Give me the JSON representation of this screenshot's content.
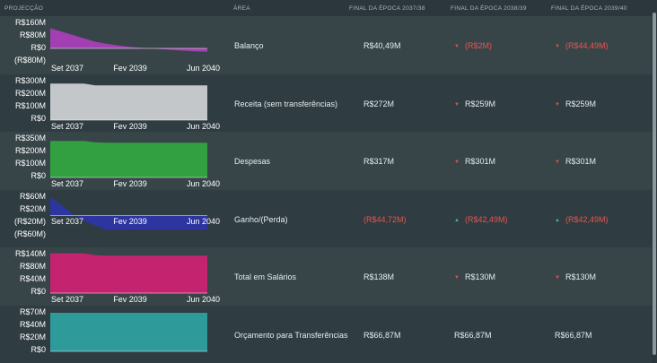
{
  "header": {
    "projection": "PROJECÇÃO",
    "area": "ÁREA",
    "col1": "FINAL DA ÉPOCA 2037/38",
    "col2": "FINAL DA ÉPOCA 2038/39",
    "col3": "FINAL DA ÉPOCA 2039/40"
  },
  "rows": [
    {
      "area": "Balanço",
      "values": [
        "R$40,49M",
        "(R$2M)",
        "(R$44,49M)"
      ],
      "negative": [
        false,
        true,
        true
      ],
      "trend": [
        "none",
        "down",
        "down"
      ]
    },
    {
      "area": "Receita (sem transferências)",
      "values": [
        "R$272M",
        "R$259M",
        "R$259M"
      ],
      "negative": [
        false,
        false,
        false
      ],
      "trend": [
        "none",
        "down",
        "down"
      ]
    },
    {
      "area": "Despesas",
      "values": [
        "R$317M",
        "R$301M",
        "R$301M"
      ],
      "negative": [
        false,
        false,
        false
      ],
      "trend": [
        "none",
        "down",
        "down"
      ]
    },
    {
      "area": "Ganho/(Perda)",
      "values": [
        "(R$44,72M)",
        "(R$42,49M)",
        "(R$42,49M)"
      ],
      "negative": [
        true,
        true,
        true
      ],
      "trend": [
        "none",
        "up",
        "up"
      ]
    },
    {
      "area": "Total em Salários",
      "values": [
        "R$138M",
        "R$130M",
        "R$130M"
      ],
      "negative": [
        false,
        false,
        false
      ],
      "trend": [
        "none",
        "down",
        "down"
      ]
    },
    {
      "area": "Orçamento para Transferências",
      "values": [
        "R$66,87M",
        "R$66,87M",
        "R$66,87M"
      ],
      "negative": [
        false,
        false,
        false
      ],
      "trend": [
        "none",
        "none",
        "none"
      ]
    }
  ],
  "chart_data": [
    {
      "type": "area",
      "title": "Balanço",
      "color": "#a23fb2",
      "x_labels": [
        "Set 2037",
        "Fev 2039",
        "Jun 2040"
      ],
      "y_ticks": [
        "R$160M",
        "R$80M",
        "R$0",
        "(R$80M)"
      ],
      "ylim": [
        -80,
        160
      ],
      "values": [
        120,
        100,
        80,
        60,
        40,
        28,
        18,
        10,
        4,
        0,
        -5,
        -10,
        -14,
        -18,
        -20
      ]
    },
    {
      "type": "area",
      "title": "Receita (sem transferências)",
      "color": "#c3c7c9",
      "x_labels": [
        "Set 2037",
        "Fev 2039",
        "Jun 2040"
      ],
      "y_ticks": [
        "R$300M",
        "R$200M",
        "R$100M",
        "R$0"
      ],
      "ylim": [
        0,
        300
      ],
      "values": [
        272,
        272,
        272,
        272,
        259,
        259,
        259,
        259,
        259,
        259,
        259,
        259,
        259,
        259,
        259
      ]
    },
    {
      "type": "area",
      "title": "Despesas",
      "color": "#32a041",
      "x_labels": [
        "Set 2037",
        "Fev 2039",
        "Jun 2040"
      ],
      "y_ticks": [
        "R$350M",
        "R$200M",
        "R$100M",
        "R$0"
      ],
      "ylim": [
        0,
        350
      ],
      "values": [
        317,
        317,
        317,
        317,
        305,
        301,
        301,
        301,
        301,
        301,
        301,
        301,
        301,
        301,
        301
      ]
    },
    {
      "type": "area",
      "title": "Ganho/(Perda)",
      "color": "#2d35a0",
      "x_labels": [
        "Set 2037",
        "Fev 2039",
        "Jun 2040"
      ],
      "y_ticks": [
        "R$60M",
        "R$20M",
        "(R$20M)",
        "(R$60M)"
      ],
      "ylim": [
        -60,
        60
      ],
      "values": [
        55,
        30,
        5,
        -15,
        -30,
        -42,
        -42,
        -42,
        -42,
        -42,
        -42,
        -42,
        -42,
        -42,
        -42
      ]
    },
    {
      "type": "area",
      "title": "Total em Salários",
      "color": "#c4236f",
      "x_labels": [
        "Set 2037",
        "Fev 2039",
        "Jun 2040"
      ],
      "y_ticks": [
        "R$140M",
        "R$80M",
        "R$40M",
        "R$0"
      ],
      "ylim": [
        0,
        140
      ],
      "values": [
        138,
        138,
        138,
        138,
        132,
        130,
        130,
        130,
        130,
        130,
        130,
        130,
        130,
        130,
        130
      ]
    },
    {
      "type": "area",
      "title": "Orçamento para Transferências",
      "color": "#2e9a9a",
      "x_labels": [],
      "y_ticks": [
        "R$70M",
        "R$40M",
        "R$20M",
        "R$0"
      ],
      "ylim": [
        0,
        70
      ],
      "values": [
        66.87,
        66.87,
        66.87,
        66.87,
        66.87,
        66.87,
        66.87,
        66.87,
        66.87,
        66.87,
        66.87,
        66.87,
        66.87,
        66.87,
        66.87
      ]
    }
  ]
}
